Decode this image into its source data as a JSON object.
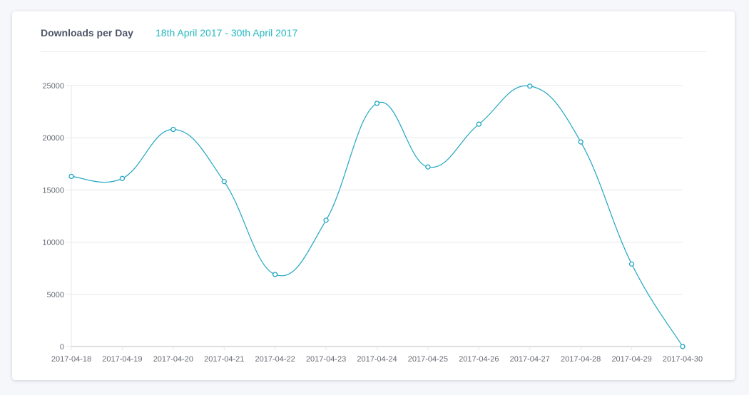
{
  "header": {
    "title": "Downloads per Day",
    "date_range": "18th April 2017 - 30th April 2017"
  },
  "colors": {
    "line": "#21a6c1",
    "grid": "#e6e7ea",
    "title": "#4f5668",
    "accent": "#25b9c1"
  },
  "chart_data": {
    "type": "line",
    "title": "Downloads per Day",
    "subtitle": "18th April 2017 - 30th April 2017",
    "xlabel": "",
    "ylabel": "",
    "categories": [
      "2017-04-18",
      "2017-04-19",
      "2017-04-20",
      "2017-04-21",
      "2017-04-22",
      "2017-04-23",
      "2017-04-24",
      "2017-04-25",
      "2017-04-26",
      "2017-04-27",
      "2017-04-28",
      "2017-04-29",
      "2017-04-30"
    ],
    "series": [
      {
        "values": [
          16300,
          16100,
          20800,
          15800,
          6900,
          12100,
          23300,
          17200,
          21300,
          24950,
          19600,
          7900,
          0
        ]
      }
    ],
    "yticks": [
      "0",
      "5000",
      "10000",
      "15000",
      "20000",
      "25000"
    ],
    "ylim": [
      0,
      25000
    ],
    "grid": true,
    "legend": "none",
    "smooth": true
  }
}
